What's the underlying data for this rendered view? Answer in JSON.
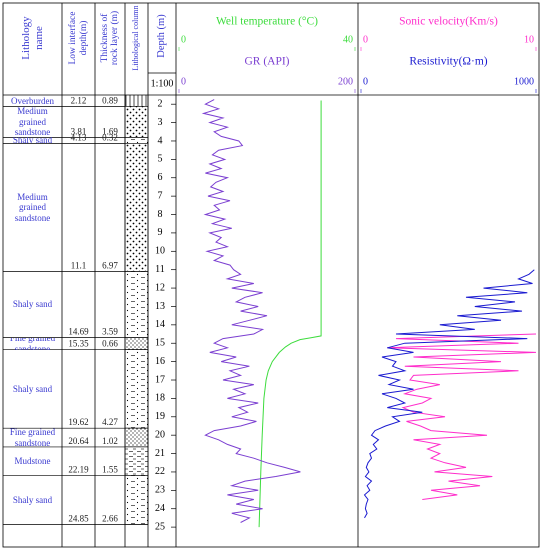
{
  "header": {
    "lithology_name": "Lithology name",
    "low_interface_depth": "Low interface depth(m)",
    "thickness": "Thickness of rock layer (m)",
    "lithological_column": "Lithological column",
    "depth": "Depth (m)",
    "scale": "1:100"
  },
  "layers": [
    {
      "name": "Overburden",
      "bottom": 2.12,
      "thickness": 0.89,
      "pattern": "vertical-lines"
    },
    {
      "name": "Medium grained sandstone",
      "bottom": 3.81,
      "thickness": 1.69,
      "pattern": "dots"
    },
    {
      "name": "Shaly sand",
      "bottom": 4.13,
      "thickness": 0.32,
      "pattern": "dash-dot"
    },
    {
      "name": "Medium grained sandstone",
      "bottom": 11.1,
      "thickness": 6.97,
      "pattern": "dots"
    },
    {
      "name": "Shaly sand",
      "bottom": 14.69,
      "thickness": 3.59,
      "pattern": "dash-dot"
    },
    {
      "name": "Fine grained sandstone",
      "bottom": 15.35,
      "thickness": 0.66,
      "pattern": "fine-dots"
    },
    {
      "name": "Shaly sand",
      "bottom": 19.62,
      "thickness": 4.27,
      "pattern": "dash-dot"
    },
    {
      "name": "Fine grained sandstone",
      "bottom": 20.64,
      "thickness": 1.02,
      "pattern": "fine-dots"
    },
    {
      "name": "Mudstone",
      "bottom": 22.19,
      "thickness": 1.55,
      "pattern": "dash"
    },
    {
      "name": "Shaly sand",
      "bottom": 24.85,
      "thickness": 2.66,
      "pattern": "dash-dot"
    }
  ],
  "depth_axis": {
    "ylim": [
      1.5,
      26
    ],
    "ticks": [
      2,
      3,
      4,
      5,
      6,
      7,
      8,
      9,
      10,
      11,
      12,
      13,
      14,
      15,
      16,
      17,
      18,
      19,
      20,
      21,
      22,
      23,
      24,
      25
    ]
  },
  "tracks": [
    {
      "curves": [
        {
          "name": "Well temperature (°C)",
          "color": "#3ddc3d",
          "xlim": [
            0,
            40
          ],
          "xticks": [
            0,
            40
          ],
          "depth": [
            1.8,
            14.6,
            14.7,
            14.8,
            15,
            15.2,
            15.5,
            16,
            16.5,
            17,
            18,
            20,
            22,
            25
          ],
          "values": [
            32.3,
            32.3,
            30,
            27.5,
            25.5,
            24.2,
            22.8,
            21.2,
            20.3,
            19.8,
            19.3,
            18.9,
            18.6,
            18.2
          ]
        },
        {
          "name": "GR (API)",
          "color": "#7b3fd1",
          "xlim": [
            0,
            200
          ],
          "xticks": [
            0,
            200
          ],
          "depth": [
            1.75,
            2,
            2.25,
            2.5,
            2.75,
            3,
            3.25,
            3.5,
            3.75,
            4,
            4.25,
            4.5,
            4.75,
            5,
            5.25,
            5.5,
            5.75,
            6,
            6.25,
            6.5,
            6.75,
            7,
            7.25,
            7.5,
            7.75,
            8,
            8.25,
            8.5,
            8.75,
            9,
            9.25,
            9.5,
            9.75,
            10,
            10.25,
            10.5,
            10.75,
            11,
            11.25,
            11.5,
            11.75,
            12,
            12.25,
            12.5,
            12.75,
            13,
            13.25,
            13.5,
            13.75,
            14,
            14.25,
            14.5,
            14.75,
            15,
            15.25,
            15.5,
            15.75,
            16,
            16.25,
            16.5,
            16.75,
            17,
            17.25,
            17.5,
            17.75,
            18,
            18.25,
            18.5,
            18.75,
            19,
            19.25,
            19.5,
            19.75,
            20,
            20.25,
            20.5,
            20.75,
            21,
            21.25,
            21.5,
            21.75,
            22,
            22.25,
            22.5,
            22.75,
            23,
            23.25,
            23.5,
            23.75,
            24,
            24.25,
            24.5,
            24.75
          ],
          "values": [
            40,
            30,
            45,
            28,
            50,
            35,
            55,
            40,
            48,
            68,
            72,
            45,
            38,
            52,
            35,
            48,
            30,
            55,
            42,
            36,
            50,
            33,
            58,
            40,
            46,
            30,
            52,
            38,
            60,
            35,
            48,
            42,
            55,
            32,
            50,
            40,
            58,
            62,
            70,
            55,
            85,
            60,
            95,
            75,
            65,
            90,
            70,
            100,
            80,
            60,
            95,
            85,
            50,
            40,
            55,
            35,
            65,
            48,
            80,
            58,
            70,
            50,
            85,
            62,
            75,
            55,
            90,
            68,
            78,
            60,
            88,
            70,
            40,
            30,
            45,
            55,
            70,
            65,
            85,
            100,
            120,
            138,
            110,
            75,
            60,
            90,
            55,
            85,
            65,
            95,
            60,
            80,
            70
          ]
        }
      ]
    },
    {
      "curves": [
        {
          "name": "Sonic velocity(Km/s)",
          "color": "#ff2ecb",
          "xlim": [
            0,
            10
          ],
          "xticks": [
            0,
            10
          ],
          "depth": [
            14.5,
            14.75,
            15,
            15.25,
            15.5,
            15.75,
            16,
            16.25,
            16.5,
            16.75,
            17,
            17.25,
            17.5,
            17.75,
            18,
            18.25,
            18.5,
            18.75,
            19,
            19.25,
            19.5,
            19.75,
            20,
            20.25,
            20.5,
            20.75,
            21,
            21.25,
            21.5,
            21.75,
            22,
            22.25,
            22.5,
            22.75,
            23,
            23.25,
            23.5
          ],
          "values": [
            10,
            2,
            9,
            1.5,
            10,
            3,
            8,
            2.5,
            9,
            3,
            2.8,
            4.5,
            3.2,
            2.5,
            4,
            3.5,
            2.4,
            3,
            4.8,
            2.6,
            3.4,
            4,
            7.2,
            3,
            4.5,
            3.8,
            4.5,
            4,
            4.8,
            6,
            4.2,
            7.5,
            5,
            6.8,
            4,
            5.5,
            3.5
          ]
        },
        {
          "name": "Resistivity(Ω·m)",
          "color": "#1a1ad0",
          "xlim": [
            0,
            1000
          ],
          "xticks": [
            0,
            1000
          ],
          "depth": [
            11,
            11.25,
            11.5,
            11.75,
            12,
            12.25,
            12.5,
            12.75,
            13,
            13.25,
            13.5,
            13.75,
            14,
            14.25,
            14.5,
            14.75,
            15,
            15.25,
            15.5,
            15.75,
            16,
            16.25,
            16.5,
            16.75,
            17,
            17.25,
            17.5,
            17.75,
            18,
            18.25,
            18.5,
            18.75,
            19,
            19.25,
            19.5,
            19.75,
            20,
            20.25,
            20.5,
            20.75,
            21,
            21.25,
            21.5,
            21.75,
            22,
            22.25,
            22.5,
            22.75,
            23,
            23.25,
            23.5,
            23.75,
            24,
            24.25,
            24.5
          ],
          "values": [
            990,
            960,
            900,
            980,
            700,
            950,
            600,
            880,
            650,
            920,
            550,
            800,
            450,
            650,
            200,
            950,
            250,
            150,
            300,
            120,
            200,
            180,
            250,
            100,
            220,
            160,
            300,
            120,
            200,
            250,
            150,
            350,
            180,
            220,
            140,
            80,
            60,
            100,
            70,
            90,
            50,
            60,
            40,
            30,
            45,
            25,
            60,
            35,
            50,
            20,
            40,
            30,
            25,
            35,
            20
          ]
        }
      ]
    }
  ]
}
